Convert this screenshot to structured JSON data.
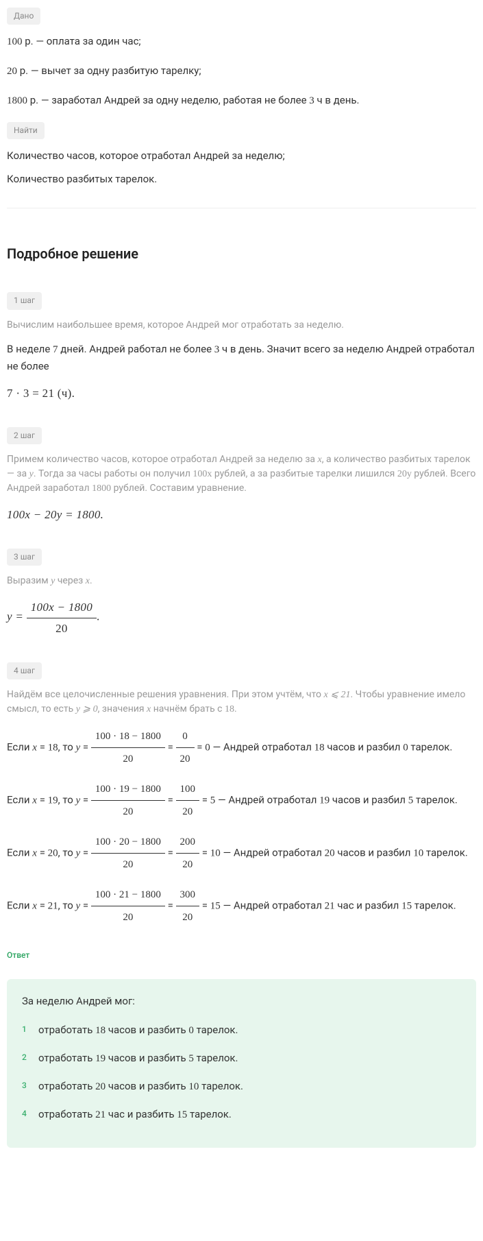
{
  "badges": {
    "given": "Дано",
    "find": "Найти",
    "step1": "1 шаг",
    "step2": "2 шаг",
    "step3": "3 шаг",
    "step4": "4 шаг",
    "answer": "Ответ"
  },
  "given": {
    "l1a": "100",
    "l1b": " р. — оплата за один час;",
    "l2a": "20",
    "l2b": " р. — вычет за одну разбитую тарелку;",
    "l3a": "1800",
    "l3b": " р. — заработал Андрей за одну неделю, работая не более ",
    "l3c": "3",
    "l3d": " ч в день."
  },
  "find": {
    "l1": "Количество часов, которое отработал Андрей за неделю;",
    "l2": "Количество разбитых тарелок."
  },
  "solution_title": "Подробное решение",
  "step1": {
    "intro": "Вычислим наибольшее время, которое Андрей мог отработать за неделю.",
    "t1": "В неделе ",
    "n1": "7",
    "t2": " дней. Андрей работал не более ",
    "n2": "3",
    "t3": " ч в день. Значит всего за неделю Андрей отработал не более",
    "eq": "7 · 3 = 21 (ч)."
  },
  "step2": {
    "intro_a": "Примем количество часов, которое отработал Андрей за неделю за ",
    "intro_b": ", а количество разбитых тарелок — за ",
    "intro_c": ". Тогда за часы работы он получил ",
    "intro_d": " рублей, а за разбитые тарелки лишился ",
    "intro_e": " рублей. Всего Андрей заработал ",
    "intro_f": " рублей. Составим уравнение.",
    "x": "x",
    "y": "y",
    "hx": "100x",
    "hy": "20y",
    "n1800": "1800",
    "eq": "100x − 20y = 1800."
  },
  "step3": {
    "intro_a": "Выразим ",
    "y": "y",
    "intro_b": " через ",
    "x": "x",
    "intro_c": ".",
    "eq_lhs": "y = ",
    "eq_num": "100x − 1800",
    "eq_den": "20",
    "eq_tail": "."
  },
  "step4": {
    "intro_a": "Найдём все целочисленные решения уравнения. При этом учтём, что ",
    "xle": "x  ⩽  21",
    "intro_b": ". Чтобы уравнение имело смысл, то есть ",
    "yge": "y  ⩾  0",
    "intro_c": ", значения ",
    "x": "x",
    "intro_d": " начнём брать с ",
    "n18": "18",
    "intro_e": ".",
    "cases": [
      {
        "x": "18",
        "num": "100 · 18 − 1800",
        "den": "20",
        "mid_num": "0",
        "mid_den": "20",
        "res": "0",
        "tail_a": " — Андрей отработал ",
        "h": "18",
        "tail_b": " часов и разбил ",
        "p": "0",
        "tail_c": " тарелок."
      },
      {
        "x": "19",
        "num": "100 · 19 − 1800",
        "den": "20",
        "mid_num": "100",
        "mid_den": "20",
        "res": "5",
        "tail_a": " — Андрей отработал ",
        "h": "19",
        "tail_b": " часов и разбил ",
        "p": "5",
        "tail_c": " тарелок."
      },
      {
        "x": "20",
        "num": "100 · 20 − 1800",
        "den": "20",
        "mid_num": "200",
        "mid_den": "20",
        "res": "10",
        "tail_a": " — Андрей отработал ",
        "h": "20",
        "tail_b": " часов и разбил ",
        "p": "10",
        "tail_c": " тарелок."
      },
      {
        "x": "21",
        "num": "100 · 21 − 1800",
        "den": "20",
        "mid_num": "300",
        "mid_den": "20",
        "res": "15",
        "tail_a": " — Андрей отработал ",
        "h": "21",
        "tail_b": " час и разбил ",
        "p": "15",
        "tail_c": " тарелок."
      }
    ]
  },
  "answer": {
    "title": "За неделю Андрей мог:",
    "items": [
      {
        "a": "отработать ",
        "h": "18",
        "b": " часов и разбить ",
        "p": "0",
        "c": " тарелок."
      },
      {
        "a": "отработать ",
        "h": "19",
        "b": " часов и разбить ",
        "p": "5",
        "c": " тарелок."
      },
      {
        "a": "отработать ",
        "h": "20",
        "b": " часов и разбить ",
        "p": "10",
        "c": " тарелок."
      },
      {
        "a": "отработать ",
        "h": "21",
        "b": " час и разбить ",
        "p": "15",
        "c": " тарелок."
      }
    ]
  },
  "colors": {
    "bg": "#ffffff",
    "text": "#333333",
    "muted": "#999999",
    "badge_bg": "#f0f0f0",
    "answer_bg": "#e7f6ed",
    "answer_accent": "#2aa35f"
  }
}
